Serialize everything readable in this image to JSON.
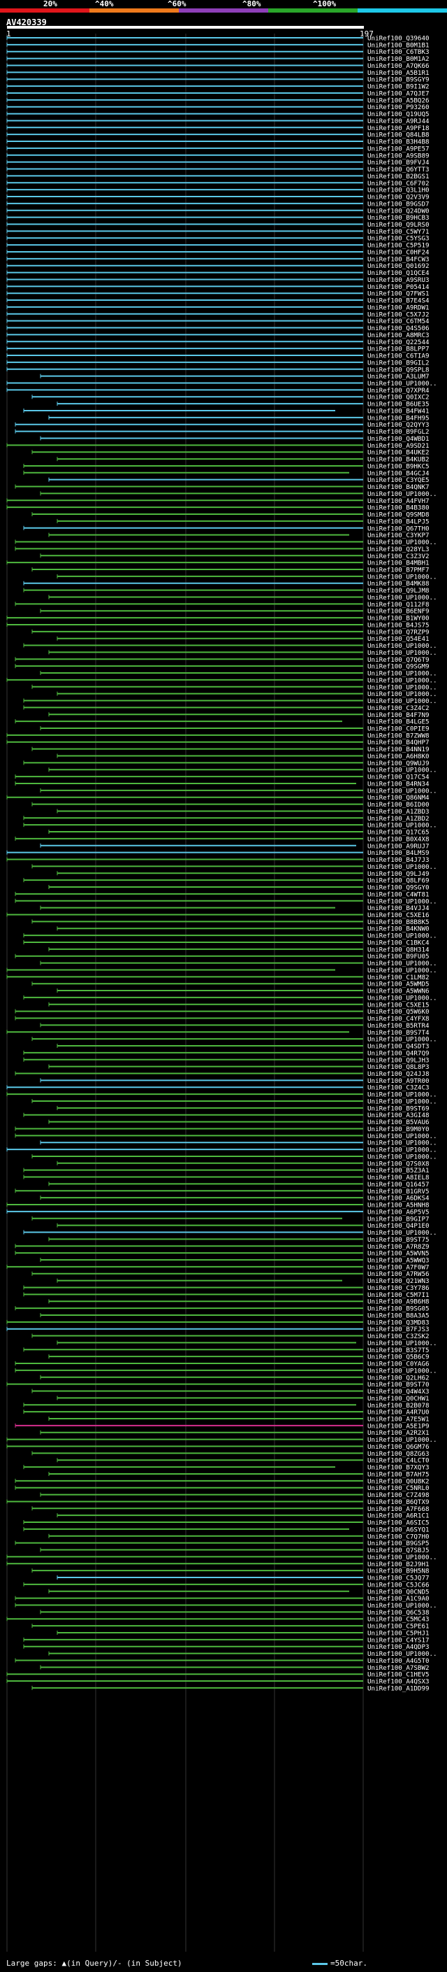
{
  "legend": {
    "labels": [
      "20%",
      "^40%",
      "^60%",
      "^80%",
      "^100%"
    ],
    "colors": [
      "#e0161b",
      "#ef7a1c",
      "#8e3fb8",
      "#2aa62a",
      "#1ec8e8"
    ]
  },
  "query": {
    "title": "AV420339",
    "start": "1",
    "end": "197"
  },
  "hit_colors": {
    "high": "#5bc8e8",
    "mid": "#4eb83e",
    "low": "#d62f8e"
  },
  "hits": [
    {
      "id": "UniRef100_Q39640",
      "c": "high"
    },
    {
      "id": "UniRef100_B0M1B1",
      "c": "high"
    },
    {
      "id": "UniRef100_C6TBK3",
      "c": "high"
    },
    {
      "id": "UniRef100_B0M1A2",
      "c": "high"
    },
    {
      "id": "UniRef100_A7QK66",
      "c": "high"
    },
    {
      "id": "UniRef100_A5B1R1",
      "c": "high"
    },
    {
      "id": "UniRef100_B9SGY9",
      "c": "high"
    },
    {
      "id": "UniRef100_B9I1W2",
      "c": "high"
    },
    {
      "id": "UniRef100_A7QJE7",
      "c": "high"
    },
    {
      "id": "UniRef100_A5BQ26",
      "c": "high"
    },
    {
      "id": "UniRef100_P93260",
      "c": "high"
    },
    {
      "id": "UniRef100_Q19UQ5",
      "c": "high"
    },
    {
      "id": "UniRef100_A9RJ44",
      "c": "high"
    },
    {
      "id": "UniRef100_A9PF18",
      "c": "high"
    },
    {
      "id": "UniRef100_Q84LB8",
      "c": "high"
    },
    {
      "id": "UniRef100_B3H4B8",
      "c": "high"
    },
    {
      "id": "UniRef100_A9PE57",
      "c": "high"
    },
    {
      "id": "UniRef100_A9SB89",
      "c": "high"
    },
    {
      "id": "UniRef100_B9FVJ4",
      "c": "high"
    },
    {
      "id": "UniRef100_Q6YTT3",
      "c": "high"
    },
    {
      "id": "UniRef100_B2BGS1",
      "c": "high"
    },
    {
      "id": "UniRef100_C6F702",
      "c": "high"
    },
    {
      "id": "UniRef100_Q3L1H0",
      "c": "high"
    },
    {
      "id": "UniRef100_Q2V3V9",
      "c": "high"
    },
    {
      "id": "UniRef100_B9GSD7",
      "c": "high"
    },
    {
      "id": "UniRef100_Q24DW0",
      "c": "high"
    },
    {
      "id": "UniRef100_B9HCB3",
      "c": "high"
    },
    {
      "id": "UniRef100_Q9LRS0",
      "c": "high"
    },
    {
      "id": "UniRef100_C5WY71",
      "c": "high"
    },
    {
      "id": "UniRef100_C5YSG3",
      "c": "high"
    },
    {
      "id": "UniRef100_C5P519",
      "c": "high"
    },
    {
      "id": "UniRef100_C0HF24",
      "c": "high"
    },
    {
      "id": "UniRef100_B4FCW3",
      "c": "high"
    },
    {
      "id": "UniRef100_Q01692",
      "c": "high"
    },
    {
      "id": "UniRef100_Q1QCE4",
      "c": "high"
    },
    {
      "id": "UniRef100_A9SRU3",
      "c": "high"
    },
    {
      "id": "UniRef100_P05414",
      "c": "high"
    },
    {
      "id": "UniRef100_Q7FWS1",
      "c": "high"
    },
    {
      "id": "UniRef100_B7E4S4",
      "c": "high"
    },
    {
      "id": "UniRef100_A9RDW1",
      "c": "high"
    },
    {
      "id": "UniRef100_C5X7J2",
      "c": "high"
    },
    {
      "id": "UniRef100_C6TM54",
      "c": "high"
    },
    {
      "id": "UniRef100_Q4S506",
      "c": "high"
    },
    {
      "id": "UniRef100_A8MRC3",
      "c": "high"
    },
    {
      "id": "UniRef100_Q22544",
      "c": "high"
    },
    {
      "id": "UniRef100_B8LPP7",
      "c": "high"
    },
    {
      "id": "UniRef100_C6TIA9",
      "c": "high"
    },
    {
      "id": "UniRef100_B9GIL2",
      "c": "high"
    },
    {
      "id": "UniRef100_Q9SPL8",
      "c": "high"
    },
    {
      "id": "UniRef100_A3LUM7",
      "c": "high"
    },
    {
      "id": "UniRef100_UP1000..",
      "c": "high"
    },
    {
      "id": "UniRef100_Q7XPR4",
      "c": "high"
    },
    {
      "id": "UniRef100_Q0IXC2",
      "c": "high"
    },
    {
      "id": "UniRef100_B6UE35",
      "c": "high"
    },
    {
      "id": "UniRef100_B4FW41",
      "c": "high"
    },
    {
      "id": "UniRef100_B4FH95",
      "c": "high"
    },
    {
      "id": "UniRef100_Q2QYY3",
      "c": "high"
    },
    {
      "id": "UniRef100_B9FGL2",
      "c": "high"
    },
    {
      "id": "UniRef100_Q4WBD1",
      "c": "high"
    },
    {
      "id": "UniRef100_A9SD21",
      "c": "mid"
    },
    {
      "id": "UniRef100_B4UKE2",
      "c": "mid"
    },
    {
      "id": "UniRef100_B4KUB2",
      "c": "mid"
    },
    {
      "id": "UniRef100_B9HKC5",
      "c": "mid"
    },
    {
      "id": "UniRef100_B4GCJ4",
      "c": "mid"
    },
    {
      "id": "UniRef100_C3YQE5",
      "c": "high"
    },
    {
      "id": "UniRef100_B4QNK7",
      "c": "mid"
    },
    {
      "id": "UniRef100_UP1000..",
      "c": "mid"
    },
    {
      "id": "UniRef100_A4FVH7",
      "c": "mid"
    },
    {
      "id": "UniRef100_B4B380",
      "c": "mid"
    },
    {
      "id": "UniRef100_Q9SMD8",
      "c": "mid"
    },
    {
      "id": "UniRef100_B4LPJ5",
      "c": "mid"
    },
    {
      "id": "UniRef100_Q67TH0",
      "c": "high"
    },
    {
      "id": "UniRef100_C3YKP7",
      "c": "mid"
    },
    {
      "id": "UniRef100_UP1000..",
      "c": "mid"
    },
    {
      "id": "UniRef100_Q28YL3",
      "c": "mid"
    },
    {
      "id": "UniRef100_C3Z3V2",
      "c": "mid"
    },
    {
      "id": "UniRef100_B4MBH1",
      "c": "mid"
    },
    {
      "id": "UniRef100_B7PMF7",
      "c": "mid"
    },
    {
      "id": "UniRef100_UP1000..",
      "c": "mid"
    },
    {
      "id": "UniRef100_B4MK88",
      "c": "high"
    },
    {
      "id": "UniRef100_Q9LJM8",
      "c": "mid"
    },
    {
      "id": "UniRef100_UP1000..",
      "c": "mid"
    },
    {
      "id": "UniRef100_Q112F8",
      "c": "mid"
    },
    {
      "id": "UniRef100_B6ENF9",
      "c": "mid"
    },
    {
      "id": "UniRef100_B1WY00",
      "c": "mid"
    },
    {
      "id": "UniRef100_B4JS75",
      "c": "mid"
    },
    {
      "id": "UniRef100_Q7RZP9",
      "c": "mid"
    },
    {
      "id": "UniRef100_Q54E41",
      "c": "mid"
    },
    {
      "id": "UniRef100_UP1000..",
      "c": "mid"
    },
    {
      "id": "UniRef100_UP1000..",
      "c": "mid"
    },
    {
      "id": "UniRef100_Q7Q6T9",
      "c": "mid"
    },
    {
      "id": "UniRef100_Q9SGM9",
      "c": "mid"
    },
    {
      "id": "UniRef100_UP1000..",
      "c": "mid"
    },
    {
      "id": "UniRef100_UP1000..",
      "c": "mid"
    },
    {
      "id": "UniRef100_UP1000..",
      "c": "mid"
    },
    {
      "id": "UniRef100_UP1000..",
      "c": "mid"
    },
    {
      "id": "UniRef100_UP1000..",
      "c": "mid"
    },
    {
      "id": "UniRef100_C3Z4C2",
      "c": "mid"
    },
    {
      "id": "UniRef100_B4F7N9",
      "c": "mid"
    },
    {
      "id": "UniRef100_B4LGE5",
      "c": "mid"
    },
    {
      "id": "UniRef100_C0PIE9",
      "c": "mid"
    },
    {
      "id": "UniRef100_B7ZWW8",
      "c": "mid"
    },
    {
      "id": "UniRef100_B4QHP7",
      "c": "mid"
    },
    {
      "id": "UniRef100_B4NN19",
      "c": "mid"
    },
    {
      "id": "UniRef100_A6H8K0",
      "c": "mid"
    },
    {
      "id": "UniRef100_Q9WUJ9",
      "c": "mid"
    },
    {
      "id": "UniRef100_UP1000..",
      "c": "mid"
    },
    {
      "id": "UniRef100_Q17C54",
      "c": "mid"
    },
    {
      "id": "UniRef100_B4RN34",
      "c": "mid"
    },
    {
      "id": "UniRef100_UP1000..",
      "c": "mid"
    },
    {
      "id": "UniRef100_Q86NM4",
      "c": "mid"
    },
    {
      "id": "UniRef100_B6ID00",
      "c": "mid"
    },
    {
      "id": "UniRef100_A1ZBD3",
      "c": "mid"
    },
    {
      "id": "UniRef100_A1ZBD2",
      "c": "mid"
    },
    {
      "id": "UniRef100_UP1000..",
      "c": "mid"
    },
    {
      "id": "UniRef100_Q17C65",
      "c": "mid"
    },
    {
      "id": "UniRef100_B0X4X8",
      "c": "mid"
    },
    {
      "id": "UniRef100_A9RUJ7",
      "c": "high"
    },
    {
      "id": "UniRef100_B4LMS9",
      "c": "high"
    },
    {
      "id": "UniRef100_B4J7J3",
      "c": "mid"
    },
    {
      "id": "UniRef100_UP1000..",
      "c": "mid"
    },
    {
      "id": "UniRef100_Q9LJ49",
      "c": "mid"
    },
    {
      "id": "UniRef100_Q8LF69",
      "c": "mid"
    },
    {
      "id": "UniRef100_Q9SGY0",
      "c": "mid"
    },
    {
      "id": "UniRef100_C4WT81",
      "c": "mid"
    },
    {
      "id": "UniRef100_UP1000..",
      "c": "mid"
    },
    {
      "id": "UniRef100_B4VJJ4",
      "c": "mid"
    },
    {
      "id": "UniRef100_C5XE16",
      "c": "mid"
    },
    {
      "id": "UniRef100_B8B8K5",
      "c": "mid"
    },
    {
      "id": "UniRef100_B4KNW0",
      "c": "mid"
    },
    {
      "id": "UniRef100_UP1000..",
      "c": "mid"
    },
    {
      "id": "UniRef100_C1BKC4",
      "c": "mid"
    },
    {
      "id": "UniRef100_Q8H314",
      "c": "mid"
    },
    {
      "id": "UniRef100_B9FU05",
      "c": "mid"
    },
    {
      "id": "UniRef100_UP1000..",
      "c": "mid"
    },
    {
      "id": "UniRef100_UP1000..",
      "c": "mid"
    },
    {
      "id": "UniRef100_C1LM82",
      "c": "mid"
    },
    {
      "id": "UniRef100_A5WMD5",
      "c": "mid"
    },
    {
      "id": "UniRef100_A5WWN6",
      "c": "mid"
    },
    {
      "id": "UniRef100_UP1000..",
      "c": "mid"
    },
    {
      "id": "UniRef100_C5XE15",
      "c": "mid"
    },
    {
      "id": "UniRef100_Q5W6K0",
      "c": "mid"
    },
    {
      "id": "UniRef100_C4YFX8",
      "c": "mid"
    },
    {
      "id": "UniRef100_B5RTR4",
      "c": "mid"
    },
    {
      "id": "UniRef100_B9S7T4",
      "c": "mid"
    },
    {
      "id": "UniRef100_UP1000..",
      "c": "mid"
    },
    {
      "id": "UniRef100_Q4SDT3",
      "c": "mid"
    },
    {
      "id": "UniRef100_Q4R7Q9",
      "c": "mid"
    },
    {
      "id": "UniRef100_Q9LJH3",
      "c": "mid"
    },
    {
      "id": "UniRef100_Q8L8P3",
      "c": "mid"
    },
    {
      "id": "UniRef100_Q24JJ8",
      "c": "mid"
    },
    {
      "id": "UniRef100_A9TR00",
      "c": "high"
    },
    {
      "id": "UniRef100_C3Z4C3",
      "c": "high"
    },
    {
      "id": "UniRef100_UP1000..",
      "c": "mid"
    },
    {
      "id": "UniRef100_UP1000..",
      "c": "mid"
    },
    {
      "id": "UniRef100_B9ST69",
      "c": "mid"
    },
    {
      "id": "UniRef100_A3GI48",
      "c": "mid"
    },
    {
      "id": "UniRef100_B5VAU6",
      "c": "mid"
    },
    {
      "id": "UniRef100_B9M0Y0",
      "c": "mid"
    },
    {
      "id": "UniRef100_UP1000..",
      "c": "mid"
    },
    {
      "id": "UniRef100_UP1000..",
      "c": "high"
    },
    {
      "id": "UniRef100_UP1000..",
      "c": "high"
    },
    {
      "id": "UniRef100_UP1000..",
      "c": "mid"
    },
    {
      "id": "UniRef100_Q7S0X8",
      "c": "mid"
    },
    {
      "id": "UniRef100_B5Z3A1",
      "c": "mid"
    },
    {
      "id": "UniRef100_A8IEL8",
      "c": "mid"
    },
    {
      "id": "UniRef100_Q16457",
      "c": "mid"
    },
    {
      "id": "UniRef100_B1GRV5",
      "c": "mid"
    },
    {
      "id": "UniRef100_A6DKS4",
      "c": "mid"
    },
    {
      "id": "UniRef100_A5HNH8",
      "c": "mid"
    },
    {
      "id": "UniRef100_A6P5V5",
      "c": "high"
    },
    {
      "id": "UniRef100_B9GIP7",
      "c": "mid"
    },
    {
      "id": "UniRef100_Q4P1E0",
      "c": "mid"
    },
    {
      "id": "UniRef100_UP1000..",
      "c": "high"
    },
    {
      "id": "UniRef100_B9ST75",
      "c": "mid"
    },
    {
      "id": "UniRef100_A7R8Z9",
      "c": "mid"
    },
    {
      "id": "UniRef100_A5WVN5",
      "c": "mid"
    },
    {
      "id": "UniRef100_A5WWQ3",
      "c": "mid"
    },
    {
      "id": "UniRef100_A7F0W7",
      "c": "mid"
    },
    {
      "id": "UniRef100_A7RW56",
      "c": "mid"
    },
    {
      "id": "UniRef100_Q21WN3",
      "c": "mid"
    },
    {
      "id": "UniRef100_C3Y786",
      "c": "mid"
    },
    {
      "id": "UniRef100_C5M7I1",
      "c": "mid"
    },
    {
      "id": "UniRef100_A9B6H8",
      "c": "mid"
    },
    {
      "id": "UniRef100_B9SG05",
      "c": "mid"
    },
    {
      "id": "UniRef100_B8A3A5",
      "c": "mid"
    },
    {
      "id": "UniRef100_Q3MD83",
      "c": "mid"
    },
    {
      "id": "UniRef100_B7FJS3",
      "c": "high"
    },
    {
      "id": "UniRef100_C3ZSK2",
      "c": "mid"
    },
    {
      "id": "UniRef100_UP1000..",
      "c": "mid"
    },
    {
      "id": "UniRef100_B3S7T5",
      "c": "mid"
    },
    {
      "id": "UniRef100_Q5B6C9",
      "c": "mid"
    },
    {
      "id": "UniRef100_C0YAG6",
      "c": "mid"
    },
    {
      "id": "UniRef100_UP1000..",
      "c": "mid"
    },
    {
      "id": "UniRef100_Q2LH62",
      "c": "mid"
    },
    {
      "id": "UniRef100_B9ST70",
      "c": "mid"
    },
    {
      "id": "UniRef100_Q4W4X3",
      "c": "mid"
    },
    {
      "id": "UniRef100_Q0CHW1",
      "c": "mid"
    },
    {
      "id": "UniRef100_B2B078",
      "c": "mid"
    },
    {
      "id": "UniRef100_A4R7U0",
      "c": "mid"
    },
    {
      "id": "UniRef100_A7E5W1",
      "c": "mid"
    },
    {
      "id": "UniRef100_A5E1P9",
      "c": "low"
    },
    {
      "id": "UniRef100_A2R2X1",
      "c": "mid"
    },
    {
      "id": "UniRef100_UP1000..",
      "c": "mid"
    },
    {
      "id": "UniRef100_Q6GM76",
      "c": "mid"
    },
    {
      "id": "UniRef100_Q8ZG63",
      "c": "mid"
    },
    {
      "id": "UniRef100_C4LCT0",
      "c": "mid"
    },
    {
      "id": "UniRef100_B7XQY3",
      "c": "mid"
    },
    {
      "id": "UniRef100_B7AH75",
      "c": "mid"
    },
    {
      "id": "UniRef100_Q0U8K2",
      "c": "mid"
    },
    {
      "id": "UniRef100_C5NRL0",
      "c": "mid"
    },
    {
      "id": "UniRef100_C7Z498",
      "c": "mid"
    },
    {
      "id": "UniRef100_B6QTX9",
      "c": "mid"
    },
    {
      "id": "UniRef100_A7F668",
      "c": "mid"
    },
    {
      "id": "UniRef100_A6R1C1",
      "c": "mid"
    },
    {
      "id": "UniRef100_A6SIC5",
      "c": "mid"
    },
    {
      "id": "UniRef100_A6SYQ1",
      "c": "mid"
    },
    {
      "id": "UniRef100_C7Q7H0",
      "c": "mid"
    },
    {
      "id": "UniRef100_B9GSP5",
      "c": "mid"
    },
    {
      "id": "UniRef100_Q7SBJ5",
      "c": "mid"
    },
    {
      "id": "UniRef100_UP1000..",
      "c": "mid"
    },
    {
      "id": "UniRef100_B2J9H1",
      "c": "mid"
    },
    {
      "id": "UniRef100_B9H5N8",
      "c": "mid"
    },
    {
      "id": "UniRef100_C5JQ77",
      "c": "high"
    },
    {
      "id": "UniRef100_C5JC66",
      "c": "mid"
    },
    {
      "id": "UniRef100_Q0CND5",
      "c": "mid"
    },
    {
      "id": "UniRef100_A1C9A0",
      "c": "mid"
    },
    {
      "id": "UniRef100_UP1000..",
      "c": "mid"
    },
    {
      "id": "UniRef100_Q6C538",
      "c": "mid"
    },
    {
      "id": "UniRef100_C5MC43",
      "c": "mid"
    },
    {
      "id": "UniRef100_C5PE61",
      "c": "mid"
    },
    {
      "id": "UniRef100_C5PHJ1",
      "c": "mid"
    },
    {
      "id": "UniRef100_C4YS17",
      "c": "mid"
    },
    {
      "id": "UniRef100_A4QDP3",
      "c": "mid"
    },
    {
      "id": "UniRef100_UP1000..",
      "c": "mid"
    },
    {
      "id": "UniRef100_A4G5T0",
      "c": "mid"
    },
    {
      "id": "UniRef100_A7SBW2",
      "c": "mid"
    },
    {
      "id": "UniRef100_C1HEV5",
      "c": "mid"
    },
    {
      "id": "UniRef100_A4QSX3",
      "c": "mid"
    },
    {
      "id": "UniRef100_A1DD99",
      "c": "mid"
    }
  ],
  "footer": {
    "text": "Large gaps: ▲(in Query)/- (in Subject)",
    "scale_label": "=50char."
  }
}
